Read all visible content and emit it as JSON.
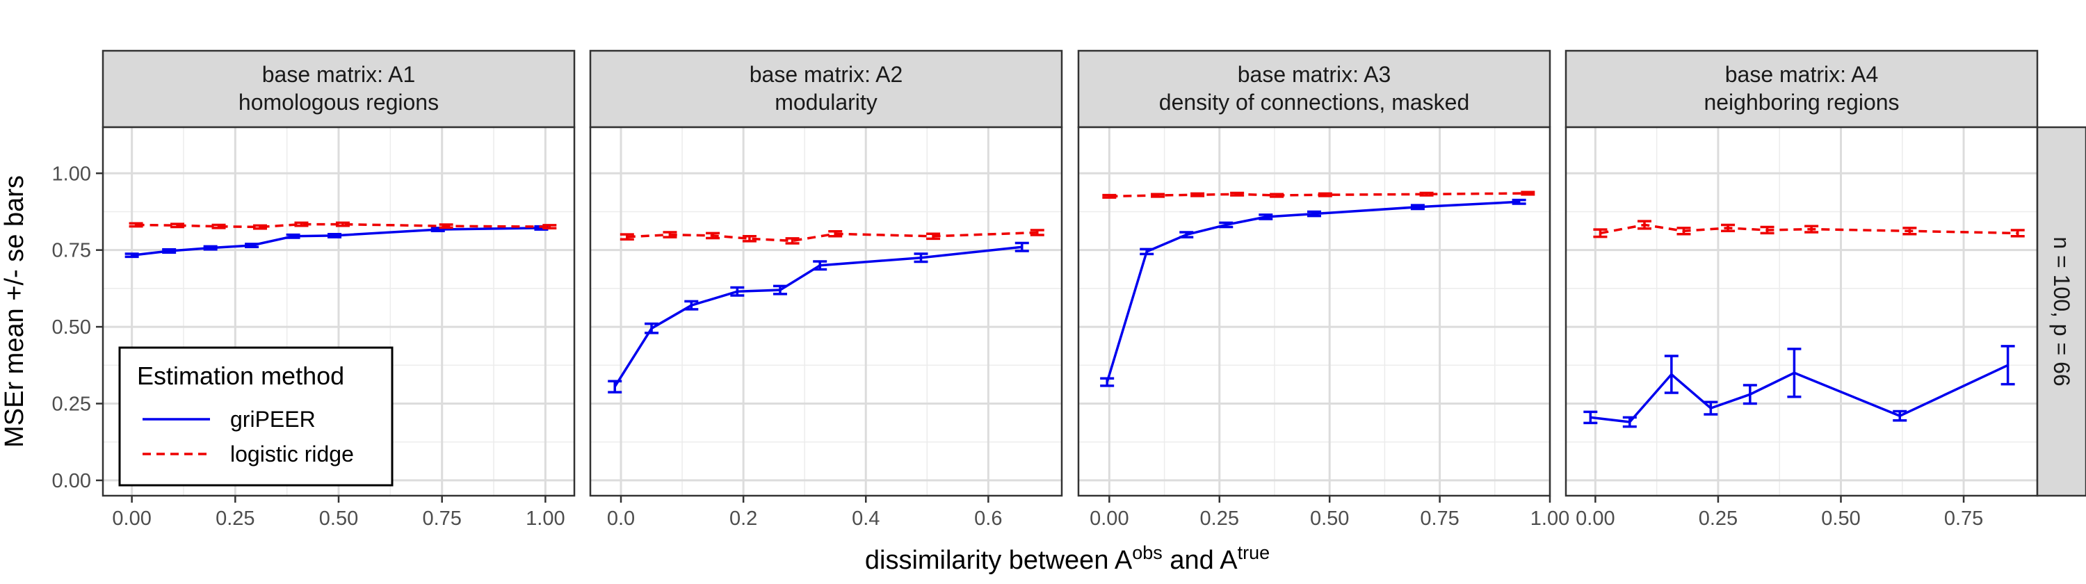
{
  "chart_data": {
    "type": "line",
    "ylabel": "MSEr mean +/- se bars",
    "xlabel": {
      "prefix": "dissimilarity between A",
      "sup1": "obs",
      "middle": " and A",
      "sup2": "true"
    },
    "row_strip": "n = 100, p = 66",
    "ylim": [
      -0.05,
      1.15
    ],
    "yticks": [
      0.0,
      0.25,
      0.5,
      0.75,
      1.0
    ],
    "ytick_labels": [
      "0.00",
      "0.25",
      "0.50",
      "0.75",
      "1.00"
    ],
    "grid": true,
    "legend": {
      "title": "Estimation method",
      "placement": "bottom-left inside first panel",
      "entries": [
        {
          "label": "griPEER",
          "color": "#0000ee",
          "dash": "solid"
        },
        {
          "label": "logistic ridge",
          "color": "#ee0000",
          "dash": "dashed"
        }
      ]
    },
    "panels": [
      {
        "strip": [
          "base matrix: A1",
          "homologous regions"
        ],
        "xlim": [
          -0.07,
          1.07
        ],
        "xticks": [
          0,
          0.25,
          0.5,
          0.75,
          1.0
        ],
        "xtick_labels": [
          "0.00",
          "0.25",
          "0.50",
          "0.75",
          "1.00"
        ],
        "series": [
          {
            "name": "griPEER",
            "x": [
              0.0,
              0.09,
              0.19,
              0.29,
              0.39,
              0.49,
              0.74,
              0.99
            ],
            "y": [
              0.733,
              0.747,
              0.757,
              0.765,
              0.795,
              0.797,
              0.817,
              0.822
            ],
            "se": [
              0.005,
              0.005,
              0.005,
              0.005,
              0.005,
              0.005,
              0.005,
              0.005
            ]
          },
          {
            "name": "logistic ridge",
            "x": [
              0.01,
              0.11,
              0.21,
              0.31,
              0.41,
              0.51,
              0.76,
              1.01
            ],
            "y": [
              0.832,
              0.83,
              0.827,
              0.825,
              0.834,
              0.834,
              0.828,
              0.826
            ],
            "se": [
              0.005,
              0.005,
              0.005,
              0.005,
              0.005,
              0.005,
              0.005,
              0.005
            ]
          }
        ]
      },
      {
        "strip": [
          "base matrix: A2",
          "modularity"
        ],
        "xlim": [
          -0.05,
          0.72
        ],
        "xticks": [
          0,
          0.2,
          0.4,
          0.6
        ],
        "xtick_labels": [
          "0.0",
          "0.2",
          "0.4",
          "0.6"
        ],
        "series": [
          {
            "name": "griPEER",
            "x": [
              -0.01,
              0.05,
              0.115,
              0.19,
              0.26,
              0.325,
              0.49,
              0.655
            ],
            "y": [
              0.305,
              0.495,
              0.57,
              0.615,
              0.62,
              0.7,
              0.725,
              0.76
            ],
            "se": [
              0.018,
              0.015,
              0.013,
              0.013,
              0.013,
              0.013,
              0.013,
              0.013
            ]
          },
          {
            "name": "logistic ridge",
            "x": [
              0.01,
              0.08,
              0.15,
              0.21,
              0.28,
              0.35,
              0.51,
              0.68
            ],
            "y": [
              0.793,
              0.8,
              0.797,
              0.787,
              0.78,
              0.803,
              0.795,
              0.807
            ],
            "se": [
              0.008,
              0.008,
              0.008,
              0.008,
              0.008,
              0.008,
              0.008,
              0.008
            ]
          }
        ]
      },
      {
        "strip": [
          "base matrix: A3",
          "density of connections, masked"
        ],
        "xlim": [
          -0.07,
          1.0
        ],
        "xticks": [
          0,
          0.25,
          0.5,
          0.75,
          1.0
        ],
        "xtick_labels": [
          "0.00",
          "0.25",
          "0.50",
          "0.75",
          "1.00"
        ],
        "series": [
          {
            "name": "griPEER",
            "x": [
              -0.005,
              0.085,
              0.175,
              0.265,
              0.355,
              0.465,
              0.7,
              0.93
            ],
            "y": [
              0.32,
              0.745,
              0.8,
              0.832,
              0.858,
              0.868,
              0.89,
              0.907
            ],
            "se": [
              0.012,
              0.008,
              0.008,
              0.007,
              0.007,
              0.007,
              0.006,
              0.006
            ]
          },
          {
            "name": "logistic ridge",
            "x": [
              0.0,
              0.11,
              0.2,
              0.29,
              0.38,
              0.49,
              0.72,
              0.95
            ],
            "y": [
              0.925,
              0.928,
              0.93,
              0.932,
              0.928,
              0.93,
              0.932,
              0.935
            ],
            "se": [
              0.004,
              0.004,
              0.004,
              0.004,
              0.004,
              0.004,
              0.004,
              0.004
            ]
          }
        ]
      },
      {
        "strip": [
          "base matrix: A4",
          "neighboring regions"
        ],
        "xlim": [
          -0.06,
          0.9
        ],
        "xticks": [
          0,
          0.25,
          0.5,
          0.75
        ],
        "xtick_labels": [
          "0.00",
          "0.25",
          "0.50",
          "0.75"
        ],
        "series": [
          {
            "name": "griPEER",
            "x": [
              -0.01,
              0.07,
              0.155,
              0.235,
              0.315,
              0.405,
              0.62,
              0.84
            ],
            "y": [
              0.205,
              0.19,
              0.345,
              0.235,
              0.28,
              0.35,
              0.21,
              0.375
            ],
            "se": [
              0.018,
              0.015,
              0.06,
              0.02,
              0.03,
              0.078,
              0.015,
              0.062
            ]
          },
          {
            "name": "logistic ridge",
            "x": [
              0.01,
              0.1,
              0.18,
              0.27,
              0.35,
              0.44,
              0.64,
              0.86
            ],
            "y": [
              0.805,
              0.832,
              0.812,
              0.822,
              0.815,
              0.818,
              0.812,
              0.805
            ],
            "se": [
              0.012,
              0.012,
              0.01,
              0.01,
              0.01,
              0.01,
              0.01,
              0.01
            ]
          }
        ]
      }
    ]
  }
}
